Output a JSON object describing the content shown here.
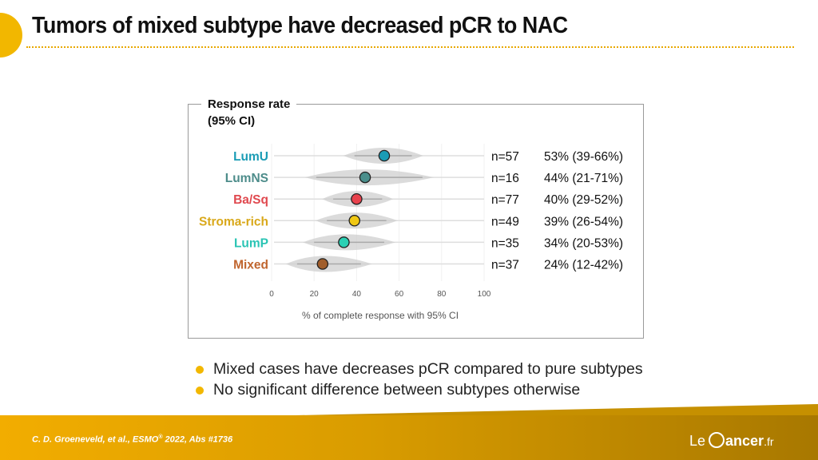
{
  "slide": {
    "title": "Tumors of mixed subtype have decreased pCR to NAC",
    "bullets": [
      "Mixed cases have decreases pCR compared to pure subtypes",
      "No significant difference between subtypes otherwise"
    ],
    "citation": "C. D. Groeneveld, et al., ESMO",
    "citation_sup": "®",
    "citation_tail": " 2022, Abs #1736",
    "logo": {
      "le": "Le",
      "cancer": "ancer",
      "fr": ".fr"
    },
    "accent_color": "#f2b700"
  },
  "chart_data": {
    "type": "forest",
    "legend_title_line1": "Response rate",
    "legend_title_line2": "(95% CI)",
    "xlabel": "% of complete response with 95% CI",
    "xlim": [
      0,
      100
    ],
    "xticks": [
      "0",
      "20",
      "40",
      "60",
      "80",
      "100"
    ],
    "rows": [
      {
        "label": "LumU",
        "label_color": "#1a9cb5",
        "point_color": "#1a9cb5",
        "n": "n=57",
        "ci_text": "53% (39-66%)",
        "estimate": 53,
        "ci_low": 39,
        "ci_high": 66
      },
      {
        "label": "LumNS",
        "label_color": "#4d8c8a",
        "point_color": "#4a8f8c",
        "n": "n=16",
        "ci_text": "44% (21-71%)",
        "estimate": 44,
        "ci_low": 21,
        "ci_high": 71
      },
      {
        "label": "Ba/Sq",
        "label_color": "#e0494f",
        "point_color": "#e8424d",
        "n": "n=77",
        "ci_text": "40% (29-52%)",
        "estimate": 40,
        "ci_low": 29,
        "ci_high": 52
      },
      {
        "label": "Stroma-rich",
        "label_color": "#d9a81a",
        "point_color": "#f0c814",
        "n": "n=49",
        "ci_text": "39% (26-54%)",
        "estimate": 39,
        "ci_low": 26,
        "ci_high": 54
      },
      {
        "label": "LumP",
        "label_color": "#2ac4b4",
        "point_color": "#2ad0b4",
        "n": "n=35",
        "ci_text": "34% (20-53%)",
        "estimate": 34,
        "ci_low": 20,
        "ci_high": 53
      },
      {
        "label": "Mixed",
        "label_color": "#c0652e",
        "point_color": "#a15e2c",
        "n": "n=37",
        "ci_text": "24% (12-42%)",
        "estimate": 24,
        "ci_low": 12,
        "ci_high": 42
      }
    ]
  }
}
